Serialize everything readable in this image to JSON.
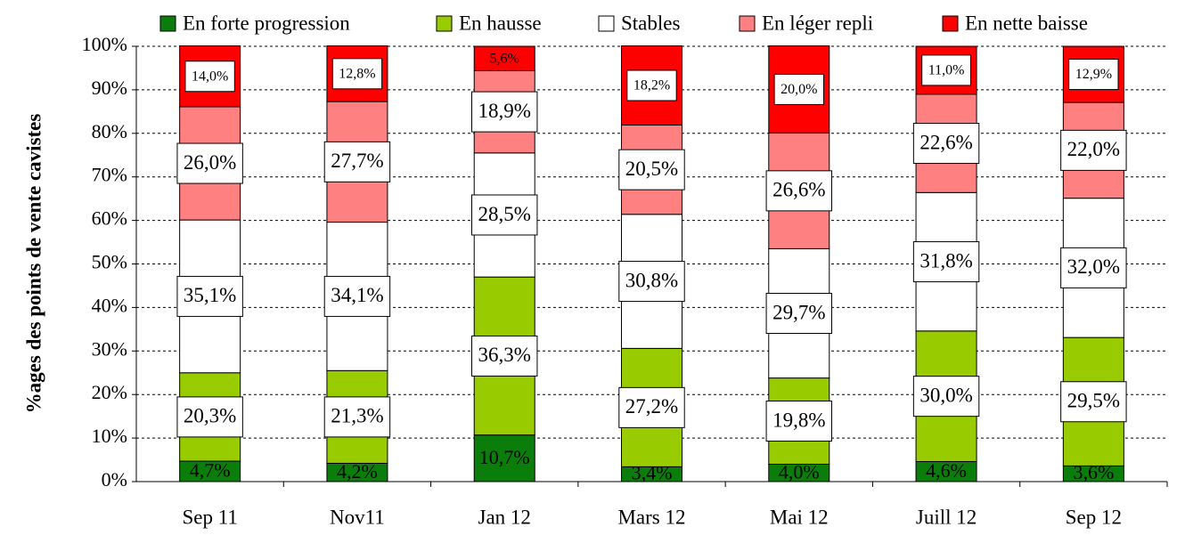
{
  "chart_data": {
    "type": "stacked_bar",
    "y_label": "%ages des points de vente cavistes",
    "categories": [
      "Sep 11",
      "Nov11",
      "Jan 12",
      "Mars 12",
      "Mai 12",
      "Juill 12",
      "Sep 12"
    ],
    "series": [
      {
        "name": "En forte progression",
        "color": "#0a7d0a",
        "values": [
          4.7,
          4.2,
          10.7,
          3.4,
          4.0,
          4.6,
          3.6
        ],
        "value_labels": [
          "4,7%",
          "4,2%",
          "10,7%",
          "3,4%",
          "4,0%",
          "4,6%",
          "3,6%"
        ]
      },
      {
        "name": "En hausse",
        "color": "#99cc00",
        "values": [
          20.3,
          21.3,
          36.3,
          27.2,
          19.8,
          30.0,
          29.5
        ],
        "value_labels": [
          "20,3%",
          "21,3%",
          "36,3%",
          "27,2%",
          "19,8%",
          "30,0%",
          "29,5%"
        ]
      },
      {
        "name": "Stables",
        "color": "#ffffff",
        "values": [
          35.1,
          34.1,
          28.5,
          30.8,
          29.7,
          31.8,
          32.0
        ],
        "value_labels": [
          "35,1%",
          "34,1%",
          "28,5%",
          "30,8%",
          "29,7%",
          "31,8%",
          "32,0%"
        ]
      },
      {
        "name": "En léger repli",
        "color": "#ff8080",
        "values": [
          26.0,
          27.7,
          18.9,
          20.5,
          26.6,
          22.6,
          22.0
        ],
        "value_labels": [
          "26,0%",
          "27,7%",
          "18,9%",
          "20,5%",
          "26,6%",
          "22,6%",
          "22,0%"
        ]
      },
      {
        "name": "En nette baisse",
        "color": "#ff0000",
        "values": [
          14.0,
          12.8,
          5.6,
          18.2,
          20.0,
          11.0,
          12.9
        ],
        "value_labels": [
          "14,0%",
          "12,8%",
          "5,6%",
          "18,2%",
          "20,0%",
          "11,0%",
          "12,9%"
        ]
      }
    ],
    "ylim": [
      0,
      100
    ],
    "yticks": [
      {
        "value": 0,
        "label": "0%"
      },
      {
        "value": 10,
        "label": "10%"
      },
      {
        "value": 20,
        "label": "20%"
      },
      {
        "value": 30,
        "label": "30%"
      },
      {
        "value": 40,
        "label": "40%"
      },
      {
        "value": 50,
        "label": "50%"
      },
      {
        "value": 60,
        "label": "60%"
      },
      {
        "value": 70,
        "label": "70%"
      },
      {
        "value": 80,
        "label": "80%"
      },
      {
        "value": 90,
        "label": "90%"
      },
      {
        "value": 100,
        "label": "100%"
      }
    ],
    "grid": true,
    "legend": "top"
  }
}
